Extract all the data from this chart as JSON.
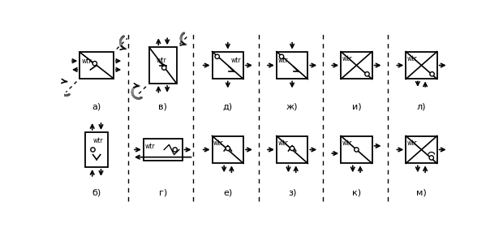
{
  "bg_color": "#ffffff",
  "labels_top": [
    "а)",
    "в)",
    "д)",
    "ж)",
    "и)",
    "л)"
  ],
  "labels_bot": [
    "б)",
    "г)",
    "е)",
    "з)",
    "к)",
    "м)"
  ],
  "figsize": [
    6.2,
    2.86
  ],
  "dpi": 100
}
